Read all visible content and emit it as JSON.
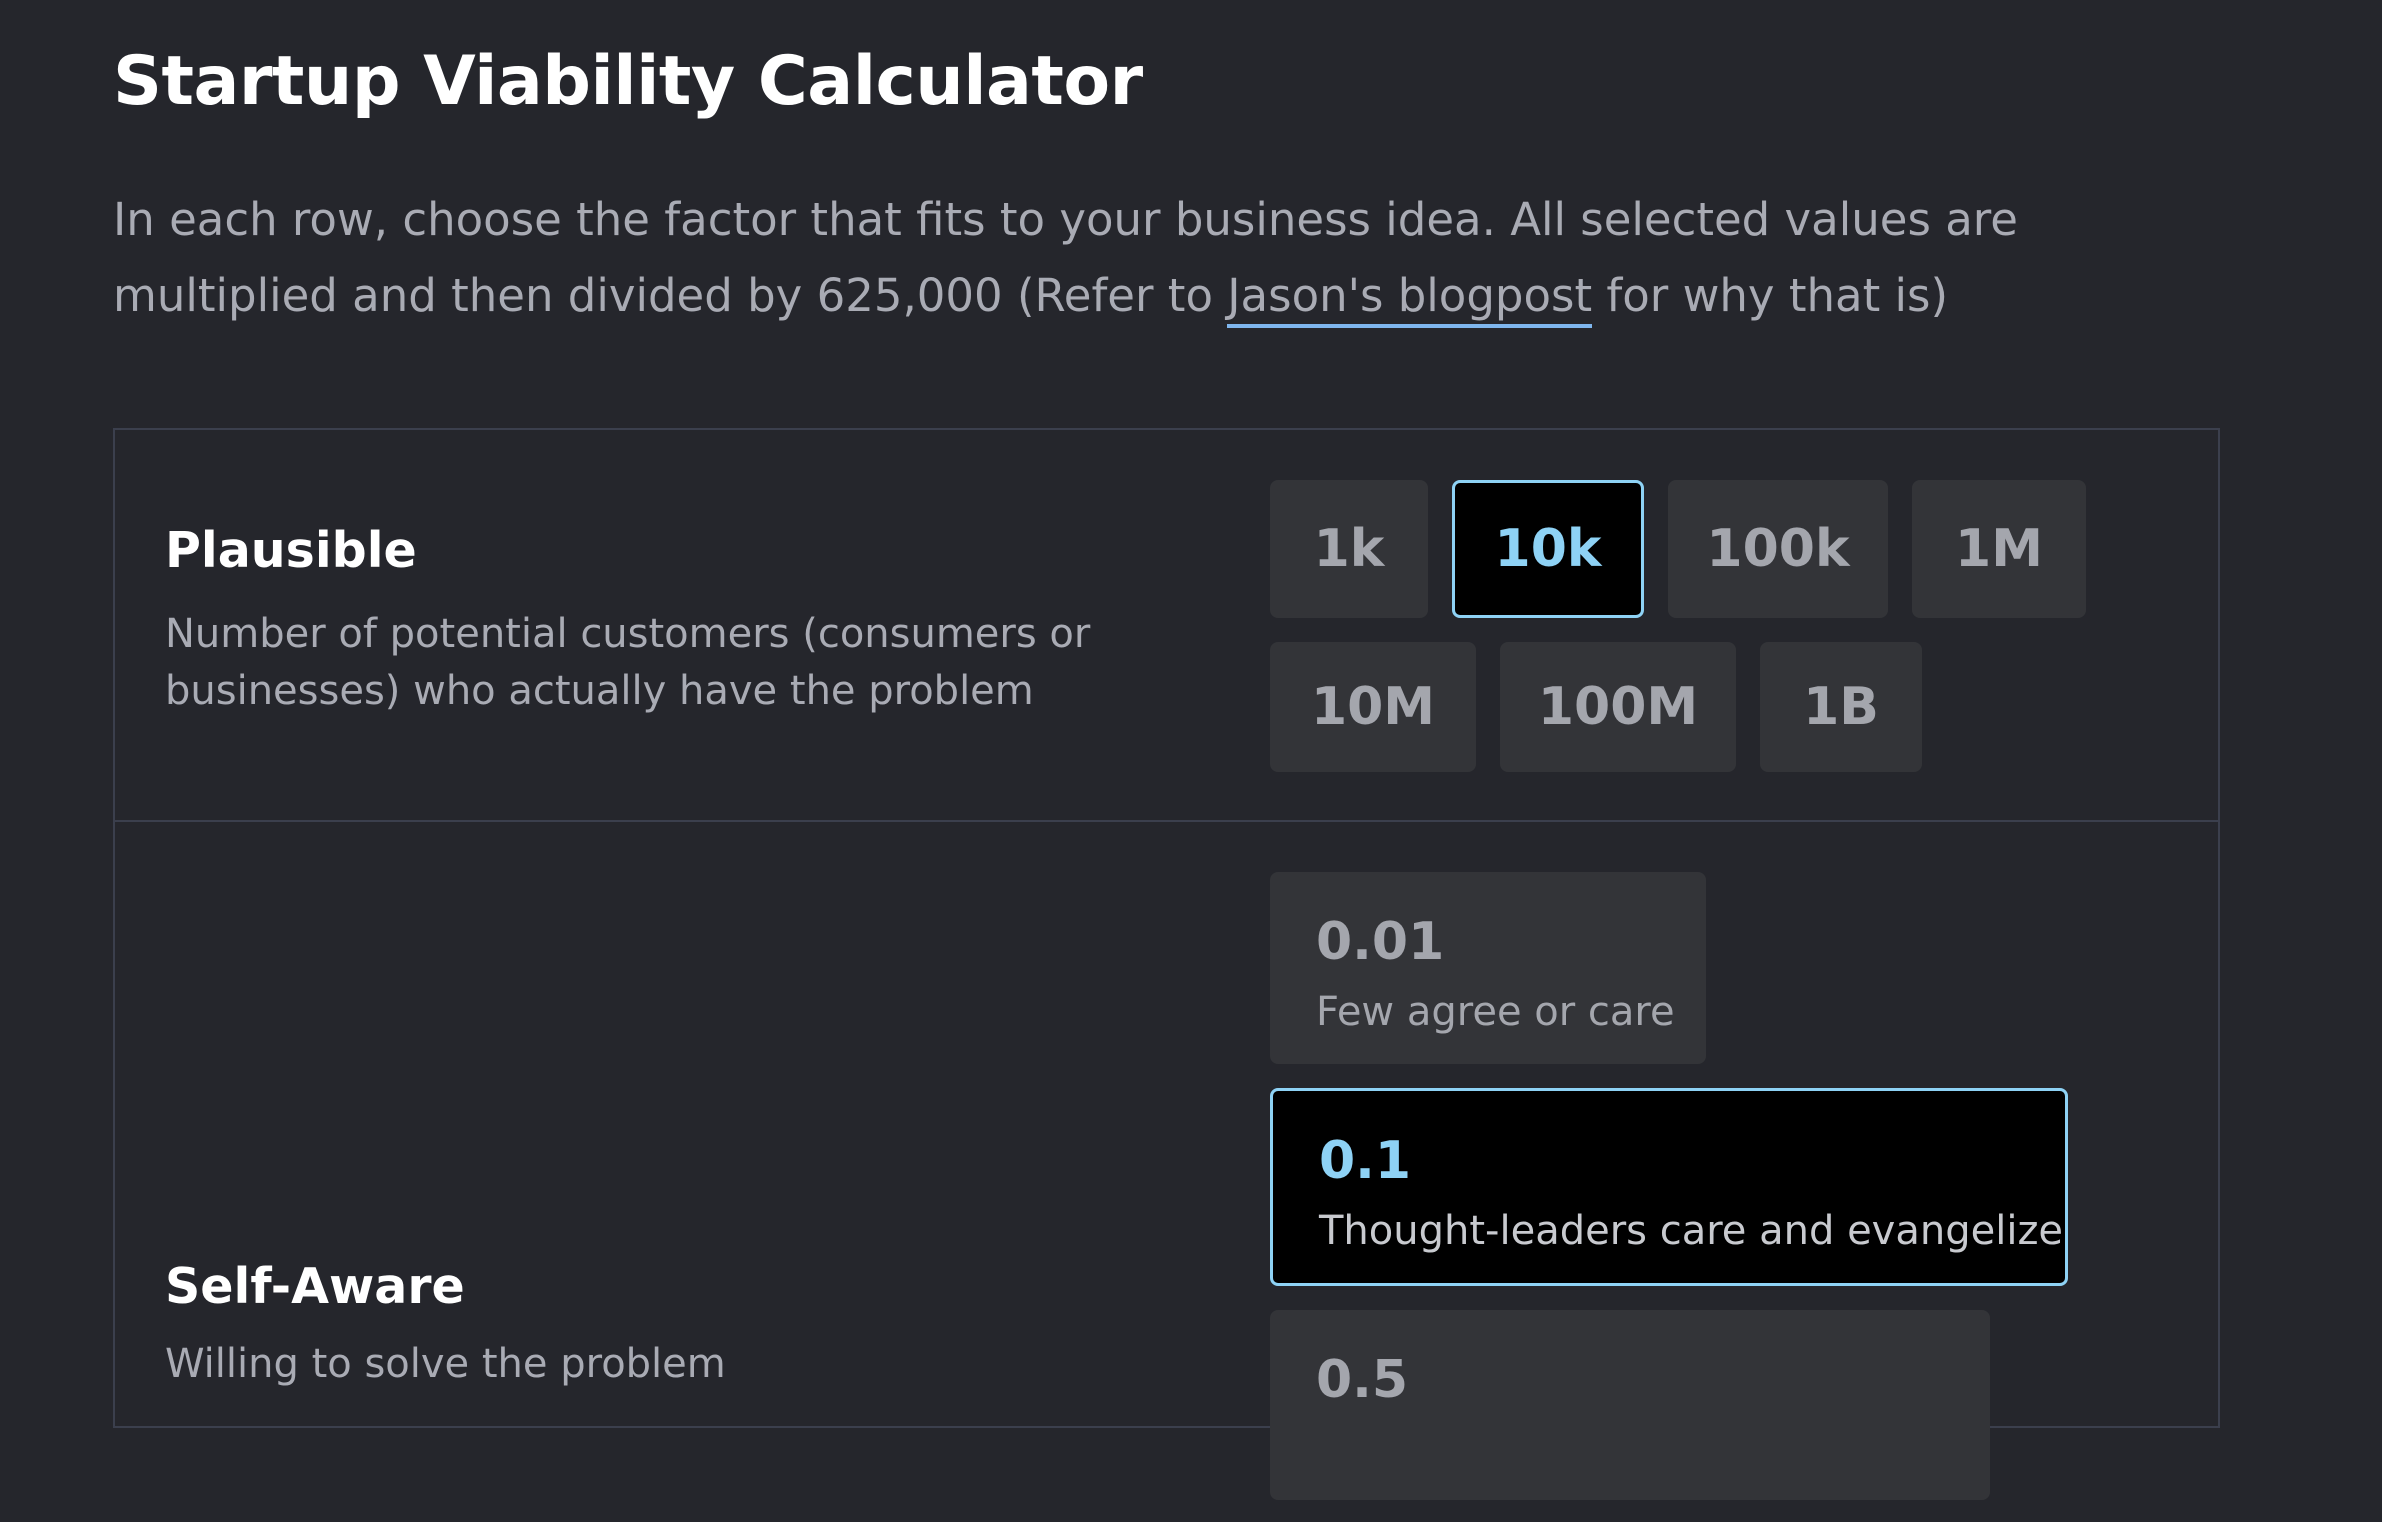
{
  "header": {
    "title": "Startup Viability Calculator"
  },
  "intro": {
    "text_before": "In each row, choose the factor that fits to your business idea. All selected values are multiplied and then divided by 625,000 (Refer to ",
    "link_text": "Jason's blogpost",
    "text_after": " for why that is)"
  },
  "rows": [
    {
      "title": "Plausible",
      "description": "Number of potential customers (consumers or businesses) who actually have the problem",
      "options": [
        {
          "value": "1k",
          "selected": false
        },
        {
          "value": "10k",
          "selected": true
        },
        {
          "value": "100k",
          "selected": false
        },
        {
          "value": "1M",
          "selected": false
        },
        {
          "value": "10M",
          "selected": false
        },
        {
          "value": "100M",
          "selected": false
        },
        {
          "value": "1B",
          "selected": false
        }
      ]
    },
    {
      "title": "Self-Aware",
      "description": "Willing to solve the problem",
      "options": [
        {
          "value": "0.01",
          "label": "Few agree or care",
          "selected": false
        },
        {
          "value": "0.1",
          "label": "Thought-leaders care and evangelize",
          "selected": true
        },
        {
          "value": "0.5",
          "label": "",
          "selected": false
        }
      ]
    }
  ],
  "colors": {
    "background": "#25262c",
    "option_bg": "#333438",
    "selected_accent": "#8ed2f5",
    "link_underline": "#7fb6ee"
  }
}
